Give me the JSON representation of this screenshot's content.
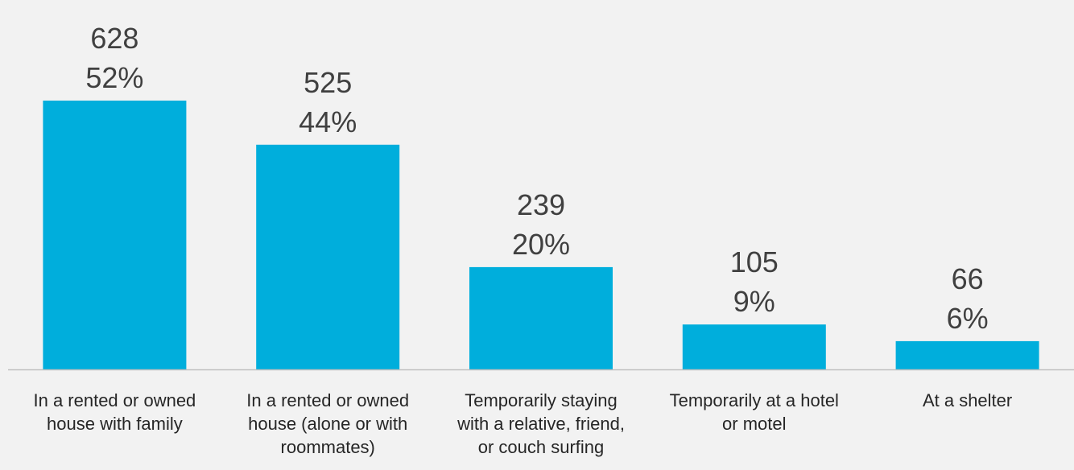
{
  "chart_data": {
    "type": "bar",
    "categories": [
      [
        "In a rented or owned",
        "house with family"
      ],
      [
        "In a rented or owned",
        "house (alone or with",
        "roommates)"
      ],
      [
        "Temporarily staying",
        "with a relative, friend,",
        "or couch surfing"
      ],
      [
        "Temporarily at a hotel",
        "or motel"
      ],
      [
        "At a shelter"
      ]
    ],
    "values": [
      628,
      525,
      239,
      105,
      66
    ],
    "percent_labels": [
      "52%",
      "44%",
      "20%",
      "9%",
      "6%"
    ],
    "count_labels": [
      "628",
      "525",
      "239",
      "105",
      "66"
    ],
    "bar_color": "#00aedc",
    "axis_color": "#bfbfbf",
    "grid": false,
    "legend": false
  }
}
